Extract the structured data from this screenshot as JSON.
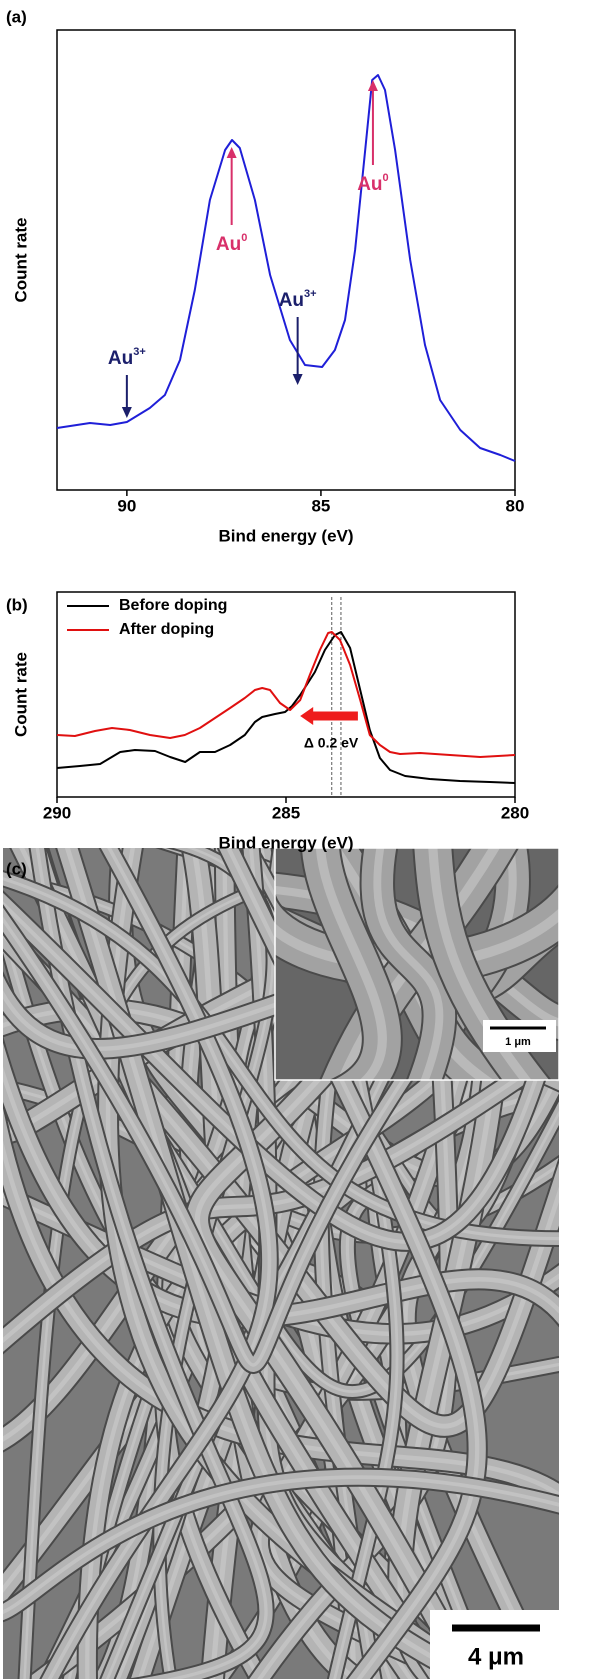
{
  "chart_data": [
    {
      "type": "line",
      "panel_label": "(a)",
      "xlabel": "Bind energy (eV)",
      "ylabel": "Count rate",
      "xlim": [
        91.8,
        80
      ],
      "xticks": [
        90,
        85,
        80
      ],
      "ylim": [
        0,
        460
      ],
      "x": [
        91.8,
        90.95,
        90.43,
        90.0,
        89.41,
        89.02,
        88.63,
        88.25,
        87.86,
        87.47,
        87.29,
        87.09,
        86.7,
        86.31,
        85.8,
        85.41,
        84.97,
        84.64,
        84.38,
        84.12,
        83.86,
        83.68,
        83.53,
        83.35,
        83.09,
        82.7,
        82.32,
        81.93,
        81.41,
        80.9,
        80.38,
        80.0
      ],
      "series": [
        {
          "color": "#1f1fd8",
          "values": [
            62,
            67,
            65,
            68,
            82,
            95,
            130,
            200,
            290,
            340,
            350,
            342,
            290,
            215,
            150,
            125,
            123,
            140,
            170,
            240,
            340,
            410,
            415,
            400,
            340,
            230,
            145,
            90,
            60,
            42,
            35,
            29
          ]
        }
      ],
      "annotations": [
        {
          "text": "Au",
          "sup": "3+",
          "x": 90.0,
          "from": 115,
          "to": 72,
          "color": "#1b1f6b"
        },
        {
          "text": "Au",
          "sup": "0",
          "x": 87.3,
          "from": 265,
          "to": 343,
          "color": "#d8306a"
        },
        {
          "text": "Au",
          "sup": "3+",
          "x": 85.6,
          "from": 173,
          "to": 105,
          "color": "#1b1f6b"
        },
        {
          "text": "Au",
          "sup": "0",
          "x": 83.66,
          "from": 325,
          "to": 410,
          "color": "#d8306a"
        }
      ]
    },
    {
      "type": "line",
      "panel_label": "(b)",
      "xlabel": "Bind energy (eV)",
      "ylabel": "Count rate",
      "xlim": [
        290,
        280
      ],
      "xticks": [
        290,
        285,
        280
      ],
      "ylim": [
        0,
        205
      ],
      "legend": "upper left",
      "series": [
        {
          "name": "Before doping",
          "color": "#000000",
          "x": [
            290,
            289.5,
            289.06,
            288.62,
            288.3,
            287.86,
            287.53,
            287.2,
            286.88,
            286.55,
            286.22,
            285.9,
            285.68,
            285.52,
            285.24,
            285.02,
            284.87,
            284.69,
            284.37,
            284.15,
            283.93,
            283.8,
            283.6,
            283.38,
            283.17,
            282.95,
            282.73,
            282.4,
            281.86,
            281.2,
            280.55,
            280
          ],
          "values": [
            29,
            31,
            33,
            45,
            47,
            46,
            40,
            35,
            45,
            45,
            52,
            62,
            75,
            80,
            83,
            85,
            91,
            102,
            125,
            147,
            162,
            165,
            149,
            107,
            67,
            39,
            27,
            21,
            18,
            16,
            15,
            14
          ]
        },
        {
          "name": "After doping",
          "color": "#e01010",
          "x": [
            290,
            289.61,
            289.17,
            288.8,
            288.41,
            287.97,
            287.53,
            287.21,
            286.88,
            286.55,
            286.22,
            285.9,
            285.68,
            285.52,
            285.35,
            285.13,
            284.91,
            284.69,
            284.48,
            284.26,
            284.08,
            284.0,
            283.82,
            283.6,
            283.38,
            283.17,
            282.95,
            282.73,
            282.51,
            282.07,
            281.42,
            280.76,
            280
          ],
          "values": [
            62,
            61,
            66,
            69,
            67,
            62,
            59,
            62,
            69,
            79,
            89,
            99,
            107,
            109,
            107,
            94,
            87,
            97,
            122,
            147,
            164,
            165,
            157,
            132,
            97,
            62,
            52,
            45,
            43,
            44,
            42,
            40,
            42
          ]
        }
      ],
      "dashed_lines": [
        284.0,
        283.8
      ],
      "shift_arrow": {
        "from": 283.43,
        "to": 284.69,
        "color": "#ee1c1c"
      },
      "shift_label": "Δ 0.2 eV"
    }
  ],
  "panel_c": {
    "panel_label": "(c)",
    "inset_scale": "1 μm",
    "main_scale": "4 μm"
  }
}
